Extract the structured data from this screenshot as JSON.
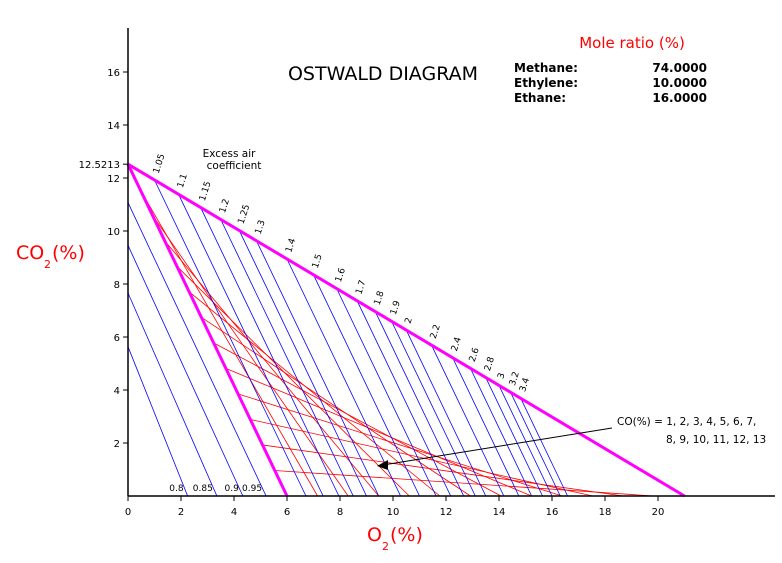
{
  "chart_data": {
    "type": "line",
    "title": "OSTWALD DIAGRAM",
    "xlabel_main": "O",
    "xlabel_sub": "2",
    "xlabel_unit": "(%)",
    "ylabel_main": "CO",
    "ylabel_sub": "2",
    "ylabel_unit": "(%)",
    "xlim": [
      0,
      24
    ],
    "ylim": [
      0,
      17.5
    ],
    "x_ticks": [
      0,
      2,
      4,
      6,
      8,
      10,
      12,
      14,
      16,
      18,
      20
    ],
    "y_ticks": [
      2,
      4,
      6,
      8,
      10,
      12,
      14,
      16
    ],
    "max_co2": 12.5213,
    "max_co2_label": "12.5213",
    "max_o2": 21,
    "co_max_o2": 6.0,
    "colors": {
      "boundary": "#ff00ff",
      "excess_air_lines": "#0000ff",
      "co_lines": "#ff0000",
      "axis_label": "#ff0000"
    },
    "mole_ratio": {
      "heading": "Mole ratio (%)",
      "rows": [
        {
          "name": "Methane:",
          "value": "74.0000"
        },
        {
          "name": "Ethylene:",
          "value": "10.0000"
        },
        {
          "name": "Ethane:",
          "value": "16.0000"
        }
      ]
    },
    "excess_air_title": [
      "Excess air",
      "coefficient"
    ],
    "excess_air_labels": [
      "1.05",
      "1.1",
      "1.15",
      "1.2",
      "1.25",
      "1.3",
      "1.4",
      "1.5",
      "1.6",
      "1.7",
      "1.8",
      "1.9",
      "2",
      "2.2",
      "2.4",
      "2.6",
      "2.8",
      "3",
      "3.2",
      "3.4"
    ],
    "excess_air_values": [
      1.05,
      1.1,
      1.15,
      1.2,
      1.25,
      1.3,
      1.4,
      1.5,
      1.6,
      1.7,
      1.8,
      1.9,
      2,
      2.2,
      2.4,
      2.6,
      2.8,
      3,
      3.2,
      3.4
    ],
    "low_air_labels": [
      "0.8",
      "0.85",
      "0.9",
      "0.95"
    ],
    "low_air_values": [
      0.8,
      0.85,
      0.9,
      0.95
    ],
    "co_lines": [
      1,
      2,
      3,
      4,
      5,
      6,
      7,
      8,
      9,
      10,
      11,
      12,
      13
    ],
    "co_annotation": [
      "CO(%) = 1, 2, 3, 4, 5, 6, 7,",
      "8, 9, 10, 11, 12, 13"
    ]
  }
}
